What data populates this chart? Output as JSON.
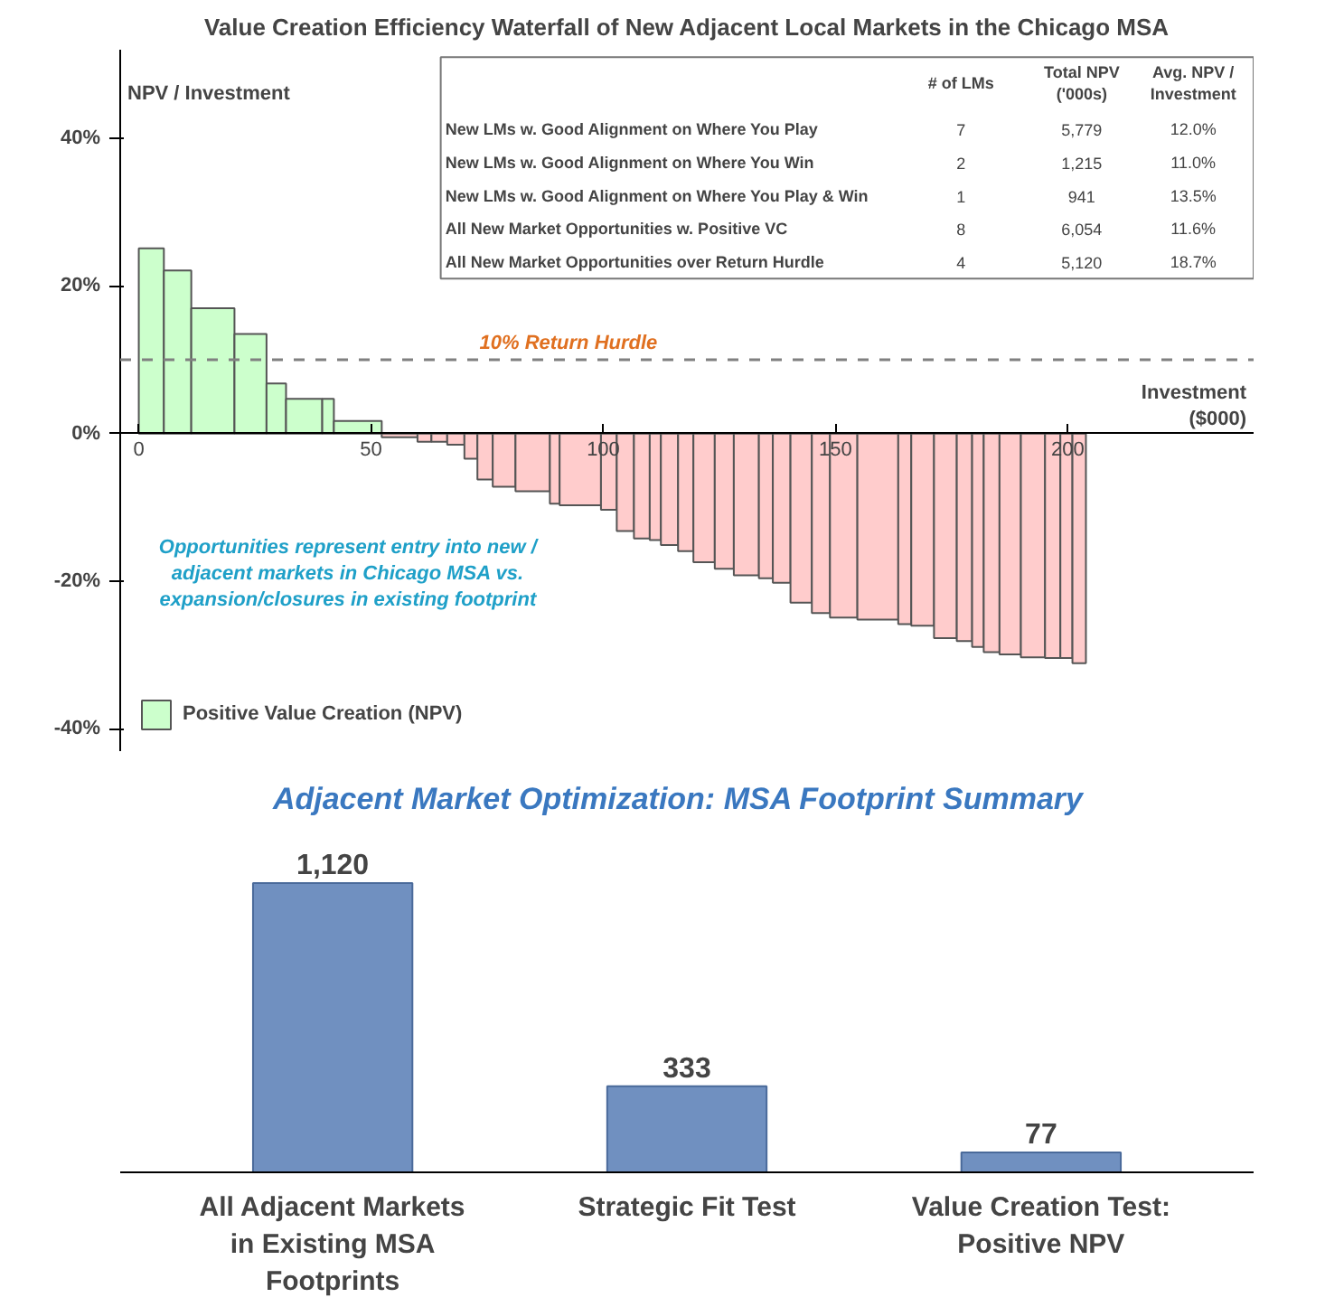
{
  "chart_data": [
    {
      "type": "bar",
      "title": "Value Creation Efficiency Waterfall of New Adjacent Local Markets in the Chicago MSA",
      "ylabel": "NPV / Investment",
      "xlabel": "Investment ($000)",
      "series": [
        {
          "name": "Positive Value Creation (NPV)",
          "color": "#ccffcc",
          "x": [
            2.7,
            8.35,
            15.95,
            24.05,
            29.6,
            35.6,
            40.75,
            47.15
          ],
          "values": [
            25.1,
            22.1,
            17,
            13.5,
            6.8,
            4.7,
            4.7,
            1.7
          ]
        },
        {
          "color": "#ffcccc",
          "x": [
            56.15,
            61.5,
            64.7,
            68.25,
            71.5,
            74.55,
            78.65,
            84.8,
            89.55,
            95.05,
            101.2,
            104.75,
            108.3,
            111.2,
            114.25,
            117.75,
            121.7,
            126.05,
            130.8,
            135,
            138.4,
            142.6,
            146.85,
            151.75,
            159.1,
            164.9,
            168.75,
            173.65,
            177.75,
            180.65,
            183.6,
            187.6,
            192.5,
            196.75,
            199.7,
            202.45
          ],
          "values": [
            -0.5,
            -1.1,
            -1.1,
            -1.5,
            -3.4,
            -6.2,
            -7.2,
            -7.8,
            -9.5,
            -9.7,
            -10.3,
            -13.2,
            -14.2,
            -14.4,
            -15.1,
            -15.9,
            -17.4,
            -18.3,
            -19.2,
            -19.6,
            -20.2,
            -22.9,
            -24.3,
            -24.9,
            -25.2,
            -25.8,
            -26.0,
            -27.7,
            -28.1,
            -28.9,
            -29.6,
            -29.9,
            -30.3,
            -30.4,
            -30.4,
            -31.1
          ]
        }
      ],
      "xlim": [
        -4,
        240
      ],
      "xticks": [
        0,
        50,
        100,
        150,
        200
      ],
      "ylim": [
        -43,
        52
      ],
      "yticks": [
        {
          "value": -40,
          "label": "-40%"
        },
        {
          "value": -20,
          "label": "-20%"
        },
        {
          "value": 0,
          "label": "0%"
        },
        {
          "value": 20,
          "label": "20%"
        },
        {
          "value": 40,
          "label": "40%"
        }
      ],
      "ref_lines": [
        {
          "axis": "y",
          "value": 10,
          "label": "10% Return Hurdle",
          "color": "#808080",
          "line_style": "dashed"
        }
      ],
      "legend": "bottom left",
      "annotations": [
        "Opportunities represent entry into new /\nadjacent markets in Chicago MSA vs.\nexpansion/closures in existing footprint",
        "# of LMs",
        "Total NPV\n('000s)",
        "Avg. NPV /\nInvestment",
        "New LMs w. Good Alignment on Where You Play",
        "7",
        "5,779",
        "12.0%",
        "New LMs w. Good Alignment on Where You Win",
        "2",
        "1,215",
        "11.0%",
        "New LMs w. Good Alignment on Where You Play & Win",
        "1",
        "941",
        "13.5%",
        "All New Market Opportunities w. Positive VC",
        "8",
        "6,054",
        "11.6%",
        "All New Market Opportunities over Return Hurdle",
        "4",
        "5,120",
        "18.7%"
      ]
    },
    {
      "type": "bar",
      "title": "Adjacent  Market Optimization:  MSA Footprint Summary",
      "categories": [
        "All Adjacent Markets in Existing MSA Footprints",
        "Strategic Fit Test",
        "Value Creation Test: Positive NPV"
      ],
      "values": [
        1120,
        333,
        77
      ],
      "value_labels": [
        "1,120",
        "333",
        "77"
      ],
      "color": "#7090c0"
    }
  ]
}
